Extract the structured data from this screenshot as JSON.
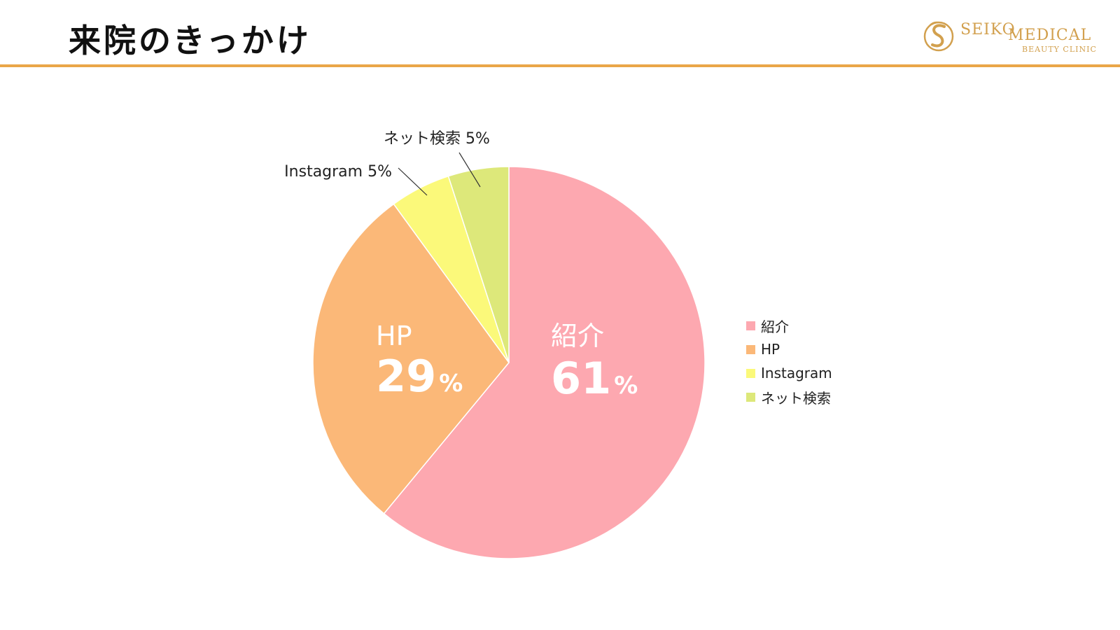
{
  "header": {
    "title": "来院のきっかけ",
    "accent_color": "#eaa648"
  },
  "logo": {
    "word1": "SEIKO",
    "word2": "MEDICAL",
    "sub": "BEAUTY CLINIC",
    "color": "#d2a04e"
  },
  "chart_data": {
    "type": "pie",
    "title": "",
    "start_angle_deg": 0,
    "direction": "clockwise",
    "legend_position": "right",
    "slices": [
      {
        "label": "紹介",
        "value": 61,
        "display": "61",
        "unit": "%",
        "color": "#fda8b0",
        "label_style": "inside"
      },
      {
        "label": "HP",
        "value": 29,
        "display": "29",
        "unit": "%",
        "color": "#fbb878",
        "label_style": "inside"
      },
      {
        "label": "Instagram",
        "value": 5,
        "display": "Instagram 5%",
        "color": "#fbf97a",
        "label_style": "callout"
      },
      {
        "label": "ネット検索",
        "value": 5,
        "display": "ネット検索 5%",
        "color": "#dde87a",
        "label_style": "callout"
      }
    ]
  }
}
